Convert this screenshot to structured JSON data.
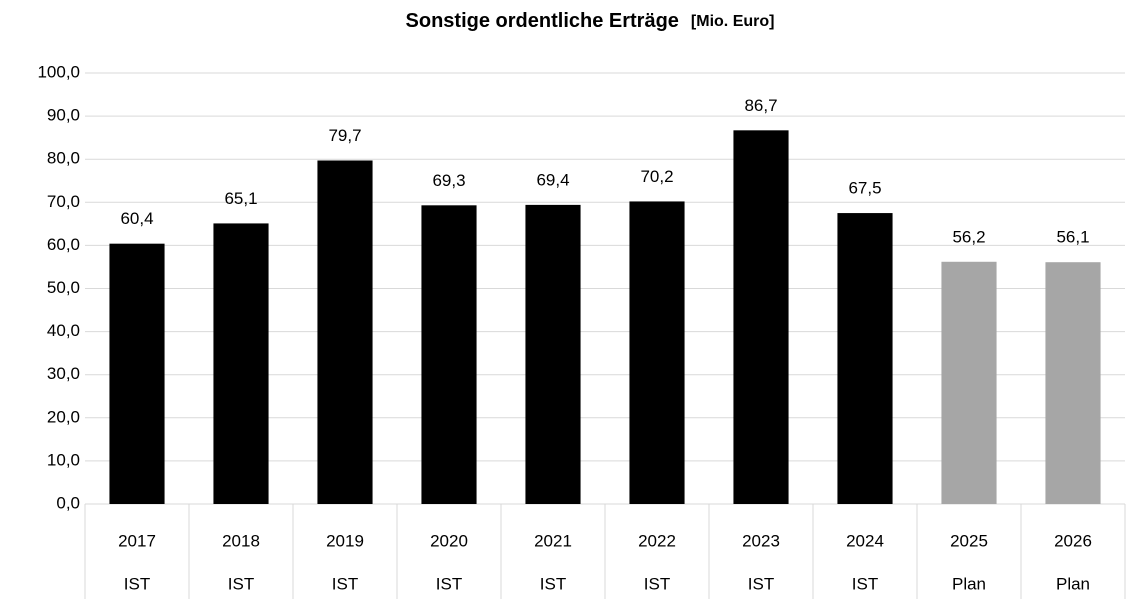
{
  "chart_data": {
    "type": "bar",
    "title": "Sonstige ordentliche Erträge",
    "unit": "[Mio. Euro]",
    "categories": [
      "2017",
      "2018",
      "2019",
      "2020",
      "2021",
      "2022",
      "2023",
      "2024",
      "2025",
      "2026"
    ],
    "subcategories": [
      "IST",
      "IST",
      "IST",
      "IST",
      "IST",
      "IST",
      "IST",
      "IST",
      "Plan",
      "Plan"
    ],
    "values": [
      60.4,
      65.1,
      79.7,
      69.3,
      69.4,
      70.2,
      86.7,
      67.5,
      56.2,
      56.1
    ],
    "value_labels": [
      "60,4",
      "65,1",
      "79,7",
      "69,3",
      "69,4",
      "70,2",
      "86,7",
      "67,5",
      "56,2",
      "56,1"
    ],
    "colors": [
      "#000000",
      "#000000",
      "#000000",
      "#000000",
      "#000000",
      "#000000",
      "#000000",
      "#000000",
      "#a6a6a6",
      "#a6a6a6"
    ],
    "ylim": [
      0,
      100
    ],
    "yticks": [
      {
        "value": 0,
        "label": "0,0"
      },
      {
        "value": 10,
        "label": "10,0"
      },
      {
        "value": 20,
        "label": "20,0"
      },
      {
        "value": 30,
        "label": "30,0"
      },
      {
        "value": 40,
        "label": "40,0"
      },
      {
        "value": 50,
        "label": "50,0"
      },
      {
        "value": 60,
        "label": "60,0"
      },
      {
        "value": 70,
        "label": "70,0"
      },
      {
        "value": 80,
        "label": "80,0"
      },
      {
        "value": 90,
        "label": "90,0"
      },
      {
        "value": 100,
        "label": "100,0"
      }
    ],
    "grid": true
  }
}
